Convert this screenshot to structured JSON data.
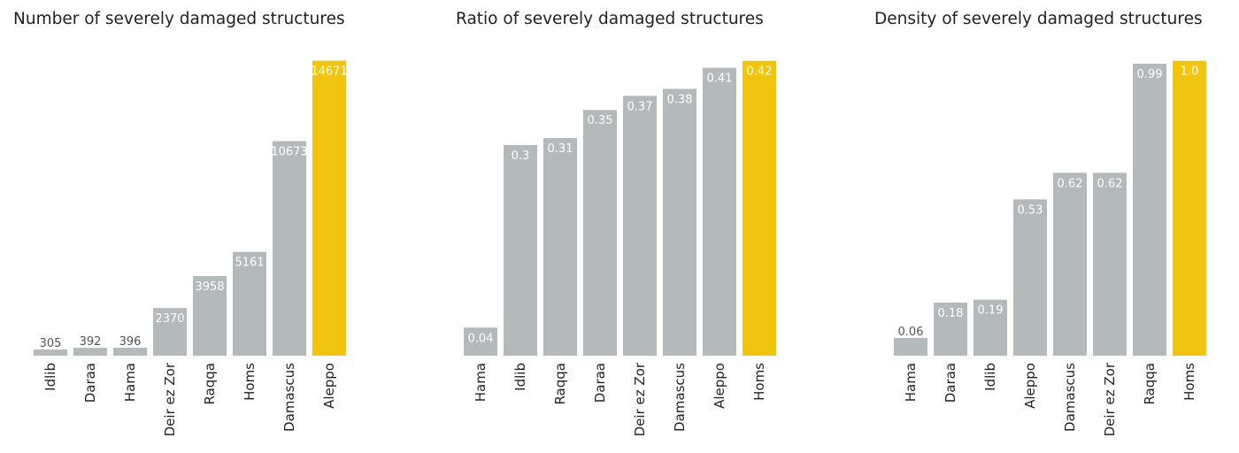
{
  "colors": {
    "bar": "#b4b9bb",
    "highlight": "#f1c40f",
    "label_outside": "#555555",
    "label_inside": "#ffffff",
    "text": "#222222"
  },
  "chart_data": [
    {
      "type": "bar",
      "title": "Number of severely damaged structures",
      "xlabel": "",
      "ylabel": "",
      "ylim": [
        0,
        15400
      ],
      "grid": false,
      "categories": [
        "Idlib",
        "Daraa",
        "Hama",
        "Deir ez Zor",
        "Raqqa",
        "Homs",
        "Damascus",
        "Aleppo"
      ],
      "values": [
        305,
        392,
        396,
        2370,
        3958,
        5161,
        10673,
        14671
      ],
      "value_labels": [
        "305",
        "392",
        "396",
        "2370",
        "3958",
        "5161",
        "10673",
        "14671"
      ],
      "highlight": "Aleppo"
    },
    {
      "type": "bar",
      "title": "Ratio of severely damaged structures",
      "xlabel": "",
      "ylabel": "",
      "ylim": [
        0,
        0.441
      ],
      "grid": false,
      "categories": [
        "Hama",
        "Idlib",
        "Raqqa",
        "Daraa",
        "Deir ez Zor",
        "Damascus",
        "Aleppo",
        "Homs"
      ],
      "values": [
        0.04,
        0.3,
        0.31,
        0.35,
        0.37,
        0.38,
        0.41,
        0.42
      ],
      "value_labels": [
        "0.04",
        "0.3",
        "0.31",
        "0.35",
        "0.37",
        "0.38",
        "0.41",
        "0.42"
      ],
      "highlight": "Homs"
    },
    {
      "type": "bar",
      "title": "Density of severely damaged structures",
      "xlabel": "",
      "ylabel": "",
      "ylim": [
        0,
        1.05
      ],
      "grid": false,
      "categories": [
        "Hama",
        "Daraa",
        "Idlib",
        "Aleppo",
        "Damascus",
        "Deir ez Zor",
        "Raqqa",
        "Homs"
      ],
      "values": [
        0.06,
        0.18,
        0.19,
        0.53,
        0.62,
        0.62,
        0.99,
        1.0
      ],
      "value_labels": [
        "0.06",
        "0.18",
        "0.19",
        "0.53",
        "0.62",
        "0.62",
        "0.99",
        "1.0"
      ],
      "highlight": "Homs"
    }
  ]
}
